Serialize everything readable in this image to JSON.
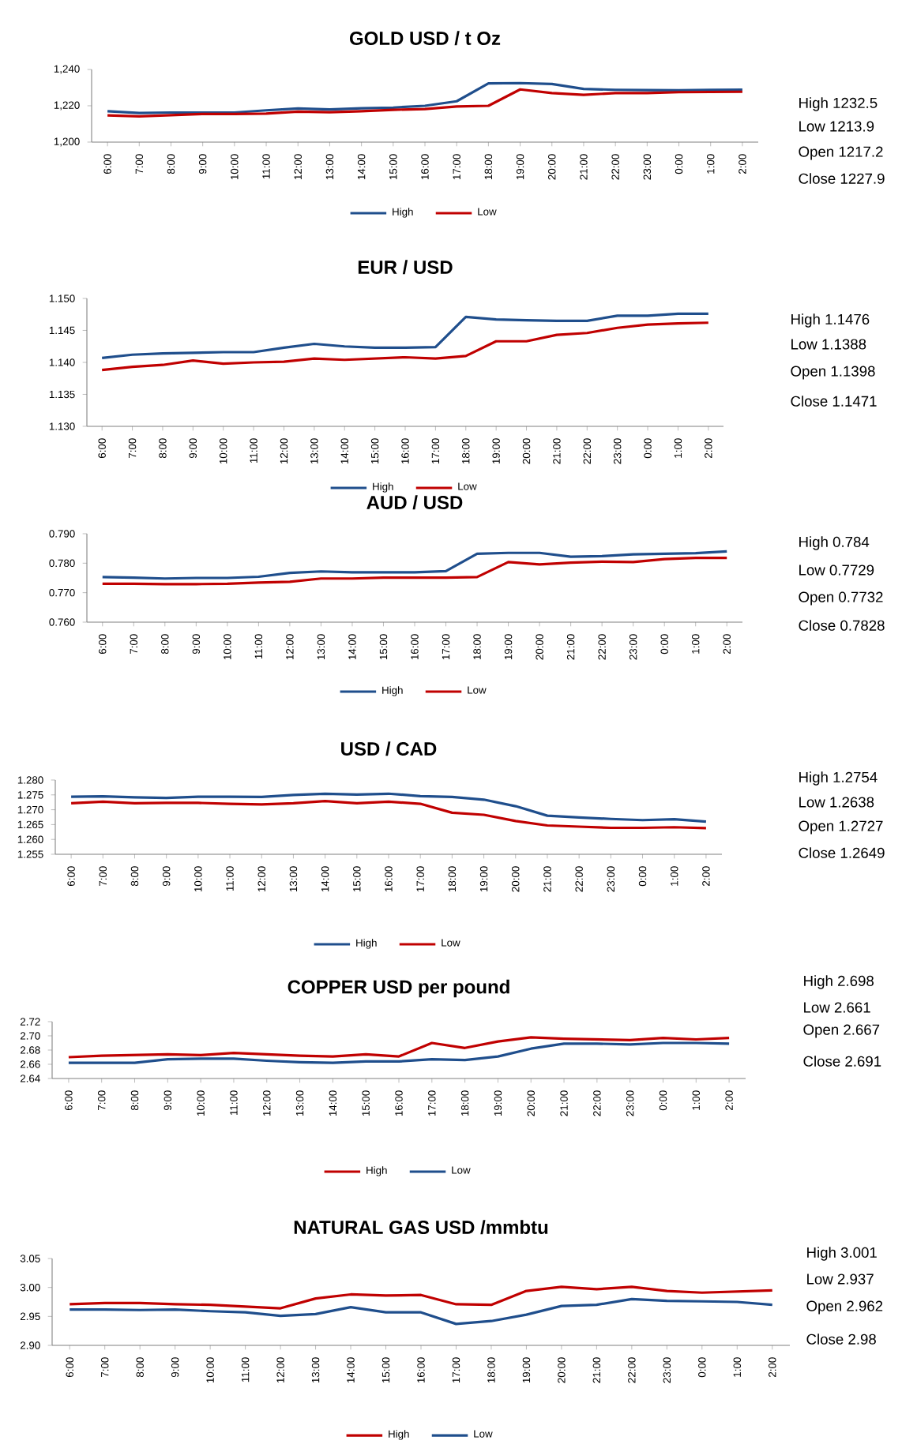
{
  "chart_data": [
    {
      "type": "line",
      "title": "GOLD  USD / t Oz",
      "categories": [
        "6:00",
        "7:00",
        "8:00",
        "9:00",
        "10:00",
        "11:00",
        "12:00",
        "13:00",
        "14:00",
        "15:00",
        "16:00",
        "17:00",
        "18:00",
        "19:00",
        "20:00",
        "21:00",
        "22:00",
        "23:00",
        "0:00",
        "1:00",
        "2:00"
      ],
      "series": [
        {
          "name": "High",
          "color": "#1f4e8c",
          "values": [
            1217,
            1216,
            1216.3,
            1216.3,
            1216.3,
            1217.5,
            1218.5,
            1218,
            1218.6,
            1219,
            1220,
            1222.5,
            1232.3,
            1232.5,
            1232,
            1229.3,
            1228.8,
            1228.6,
            1228.5,
            1228.8,
            1228.9
          ]
        },
        {
          "name": "Low",
          "color": "#c00000",
          "values": [
            1214.7,
            1214.2,
            1214.8,
            1215.5,
            1215.5,
            1215.7,
            1216.8,
            1216.5,
            1217,
            1217.8,
            1218.2,
            1219.6,
            1220,
            1229,
            1227,
            1226,
            1227,
            1227,
            1227.5,
            1227.6,
            1227.7
          ]
        }
      ],
      "ylim": [
        1200,
        1240
      ],
      "yticks": [
        {
          "value": 1200,
          "label": "1,200"
        },
        {
          "value": 1220,
          "label": "1,220"
        },
        {
          "value": 1240,
          "label": "1,240"
        }
      ],
      "legend": "bottom",
      "annotations": [
        "High  1232.5",
        "Low 1213.9",
        "Open 1217.2",
        "Close 1227.9"
      ]
    },
    {
      "type": "line",
      "title": "EUR / USD",
      "categories": [
        "6:00",
        "7:00",
        "8:00",
        "9:00",
        "10:00",
        "11:00",
        "12:00",
        "13:00",
        "14:00",
        "15:00",
        "16:00",
        "17:00",
        "18:00",
        "19:00",
        "20:00",
        "21:00",
        "22:00",
        "23:00",
        "0:00",
        "1:00",
        "2:00"
      ],
      "series": [
        {
          "name": "High",
          "color": "#1f4e8c",
          "values": [
            1.1407,
            1.1412,
            1.1414,
            1.1415,
            1.1416,
            1.1416,
            1.1423,
            1.1429,
            1.1425,
            1.1423,
            1.1423,
            1.1424,
            1.1471,
            1.1467,
            1.1466,
            1.1465,
            1.1465,
            1.1473,
            1.1473,
            1.1476,
            1.1476
          ]
        },
        {
          "name": "Low",
          "color": "#c00000",
          "values": [
            1.1388,
            1.1393,
            1.1396,
            1.1403,
            1.1398,
            1.14,
            1.1401,
            1.1406,
            1.1404,
            1.1406,
            1.1408,
            1.1406,
            1.141,
            1.1433,
            1.1433,
            1.1443,
            1.1446,
            1.1454,
            1.1459,
            1.1461,
            1.1462
          ]
        }
      ],
      "ylim": [
        1.13,
        1.15
      ],
      "yticks": [
        {
          "value": 1.13,
          "label": "1.130"
        },
        {
          "value": 1.135,
          "label": "1.135"
        },
        {
          "value": 1.14,
          "label": "1.140"
        },
        {
          "value": 1.145,
          "label": "1.145"
        },
        {
          "value": 1.15,
          "label": "1.150"
        }
      ],
      "legend": "bottom",
      "annotations": [
        "High  1.1476",
        "Low   1.1388",
        "Open  1.1398",
        "Close  1.1471"
      ]
    },
    {
      "type": "line",
      "title": "AUD / USD",
      "categories": [
        "6:00",
        "7:00",
        "8:00",
        "9:00",
        "10:00",
        "11:00",
        "12:00",
        "13:00",
        "14:00",
        "15:00",
        "16:00",
        "17:00",
        "18:00",
        "19:00",
        "20:00",
        "21:00",
        "22:00",
        "23:00",
        "0:00",
        "1:00",
        "2:00"
      ],
      "series": [
        {
          "name": "High",
          "color": "#1f4e8c",
          "values": [
            0.7753,
            0.7751,
            0.7748,
            0.775,
            0.775,
            0.7754,
            0.7767,
            0.7772,
            0.7769,
            0.7769,
            0.7769,
            0.7773,
            0.7832,
            0.7835,
            0.7835,
            0.7822,
            0.7824,
            0.783,
            0.7832,
            0.7834,
            0.784
          ]
        },
        {
          "name": "Low",
          "color": "#c00000",
          "values": [
            0.773,
            0.773,
            0.7729,
            0.7729,
            0.773,
            0.7734,
            0.7737,
            0.7748,
            0.7748,
            0.7751,
            0.7751,
            0.7751,
            0.7753,
            0.7804,
            0.7796,
            0.7802,
            0.7805,
            0.7804,
            0.7814,
            0.7818,
            0.7818
          ]
        }
      ],
      "ylim": [
        0.76,
        0.79
      ],
      "yticks": [
        {
          "value": 0.76,
          "label": "0.760"
        },
        {
          "value": 0.77,
          "label": "0.770"
        },
        {
          "value": 0.78,
          "label": "0.780"
        },
        {
          "value": 0.79,
          "label": "0.790"
        }
      ],
      "legend": "bottom",
      "annotations": [
        "High  0.784",
        "Low   0.7729",
        "Open  0.7732",
        "Close  0.7828"
      ]
    },
    {
      "type": "line",
      "title": "USD / CAD",
      "categories": [
        "6:00",
        "7:00",
        "8:00",
        "9:00",
        "10:00",
        "11:00",
        "12:00",
        "13:00",
        "14:00",
        "15:00",
        "16:00",
        "17:00",
        "18:00",
        "19:00",
        "20:00",
        "21:00",
        "22:00",
        "23:00",
        "0:00",
        "1:00",
        "2:00"
      ],
      "series": [
        {
          "name": "High",
          "color": "#1f4e8c",
          "values": [
            1.2744,
            1.2745,
            1.2742,
            1.274,
            1.2744,
            1.2744,
            1.2743,
            1.275,
            1.2754,
            1.2751,
            1.2754,
            1.2746,
            1.2743,
            1.2734,
            1.2712,
            1.268,
            1.2674,
            1.2669,
            1.2665,
            1.2668,
            1.266
          ]
        },
        {
          "name": "Low",
          "color": "#c00000",
          "values": [
            1.2722,
            1.2727,
            1.2722,
            1.2723,
            1.2723,
            1.272,
            1.2718,
            1.2722,
            1.2729,
            1.2722,
            1.2727,
            1.272,
            1.269,
            1.2683,
            1.2662,
            1.2647,
            1.2643,
            1.2639,
            1.2639,
            1.2641,
            1.2638
          ]
        }
      ],
      "ylim": [
        1.255,
        1.28
      ],
      "yticks": [
        {
          "value": 1.255,
          "label": "1.255"
        },
        {
          "value": 1.26,
          "label": "1.260"
        },
        {
          "value": 1.265,
          "label": "1.265"
        },
        {
          "value": 1.27,
          "label": "1.270"
        },
        {
          "value": 1.275,
          "label": "1.275"
        },
        {
          "value": 1.28,
          "label": "1.280"
        }
      ],
      "legend": "bottom",
      "annotations": [
        "High  1.2754",
        "Low    1.2638",
        "Open  1.2727",
        "Close  1.2649"
      ]
    },
    {
      "type": "line",
      "title": "COPPER USD per pound",
      "categories": [
        "6:00",
        "7:00",
        "8:00",
        "9:00",
        "10:00",
        "11:00",
        "12:00",
        "13:00",
        "14:00",
        "15:00",
        "16:00",
        "17:00",
        "18:00",
        "19:00",
        "20:00",
        "21:00",
        "22:00",
        "23:00",
        "0:00",
        "1:00",
        "2:00"
      ],
      "series": [
        {
          "name": "High",
          "color": "#c00000",
          "values": [
            2.67,
            2.672,
            2.673,
            2.674,
            2.673,
            2.676,
            2.674,
            2.672,
            2.671,
            2.674,
            2.671,
            2.69,
            2.683,
            2.692,
            2.698,
            2.696,
            2.695,
            2.694,
            2.697,
            2.695,
            2.697
          ]
        },
        {
          "name": "Low",
          "color": "#1f4e8c",
          "values": [
            2.662,
            2.662,
            2.662,
            2.667,
            2.668,
            2.668,
            2.665,
            2.663,
            2.662,
            2.664,
            2.664,
            2.667,
            2.666,
            2.671,
            2.682,
            2.689,
            2.689,
            2.688,
            2.69,
            2.69,
            2.689
          ]
        }
      ],
      "ylim": [
        2.64,
        2.72
      ],
      "yticks": [
        2.64,
        2.66,
        2.68,
        {
          "value": 2.7,
          "label": "2.70"
        },
        2.72
      ],
      "legend": "bottom",
      "annotations": [
        "High  2.698",
        "Low    2.661",
        "Open  2.667",
        "Close  2.691"
      ]
    },
    {
      "type": "line",
      "title": "NATURAL GAS USD /mmbtu",
      "categories": [
        "6:00",
        "7:00",
        "8:00",
        "9:00",
        "10:00",
        "11:00",
        "12:00",
        "13:00",
        "14:00",
        "15:00",
        "16:00",
        "17:00",
        "18:00",
        "19:00",
        "20:00",
        "21:00",
        "22:00",
        "23:00",
        "0:00",
        "1:00",
        "2:00"
      ],
      "series": [
        {
          "name": "High",
          "color": "#c00000",
          "values": [
            2.971,
            2.973,
            2.973,
            2.971,
            2.97,
            2.967,
            2.964,
            2.981,
            2.988,
            2.986,
            2.987,
            2.971,
            2.97,
            2.994,
            3.001,
            2.997,
            3.001,
            2.994,
            2.991,
            2.993,
            2.995
          ]
        },
        {
          "name": "Low",
          "color": "#1f4e8c",
          "values": [
            2.962,
            2.962,
            2.961,
            2.962,
            2.959,
            2.957,
            2.951,
            2.954,
            2.966,
            2.957,
            2.957,
            2.937,
            2.942,
            2.953,
            2.968,
            2.97,
            2.98,
            2.977,
            2.976,
            2.975,
            2.97
          ]
        }
      ],
      "ylim": [
        2.9,
        3.05
      ],
      "yticks": [
        {
          "value": 2.9,
          "label": "2.90"
        },
        2.95,
        {
          "value": 3.0,
          "label": "3.00"
        },
        3.05
      ],
      "legend": "bottom",
      "annotations": [
        "High  3.001",
        "Low    2.937",
        "Open  2.962",
        "Close  2.98"
      ]
    }
  ]
}
